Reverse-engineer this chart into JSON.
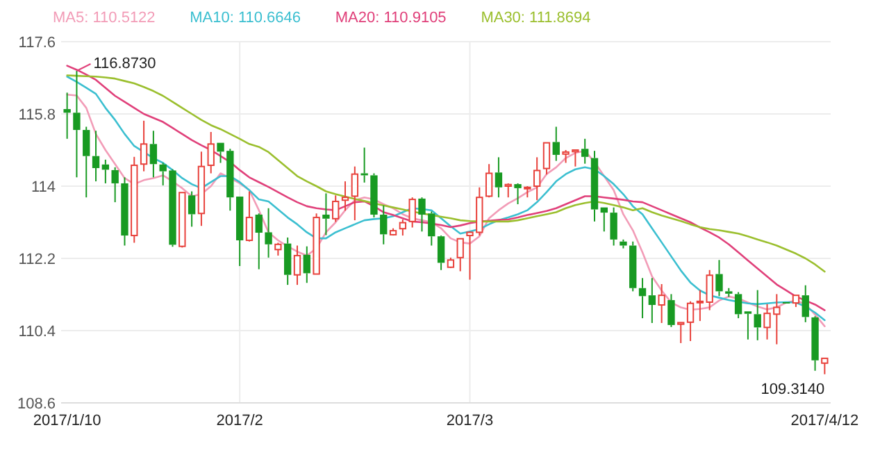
{
  "chart_data": {
    "type": "candlestick",
    "categories": [
      "2017/1/10",
      null,
      null,
      null,
      null,
      null,
      null,
      null,
      null,
      null,
      null,
      null,
      null,
      null,
      null,
      null,
      null,
      null,
      "2017/2",
      null,
      null,
      null,
      null,
      null,
      null,
      null,
      null,
      null,
      null,
      null,
      null,
      null,
      null,
      null,
      null,
      null,
      null,
      null,
      null,
      null,
      null,
      null,
      "2017/3",
      null,
      null,
      null,
      null,
      null,
      null,
      null,
      null,
      null,
      null,
      null,
      null,
      null,
      null,
      null,
      null,
      null,
      null,
      null,
      null,
      null,
      null,
      null,
      null,
      null,
      null,
      null,
      null,
      null,
      null,
      null,
      null,
      null,
      null,
      null,
      null,
      "2017/4/12"
    ],
    "ylim": [
      108.6,
      117.6
    ],
    "yticks": [
      108.6,
      110.4,
      112.2,
      114,
      115.8,
      117.6
    ],
    "grid": true,
    "annotations": [
      "116.8730",
      "109.3140"
    ],
    "series": [
      {
        "ohlc": [
          [
            115.92,
            116.33,
            115.18,
            115.83
          ],
          [
            115.83,
            116.873,
            114.22,
            115.4
          ],
          [
            115.4,
            115.48,
            113.72,
            114.75
          ],
          [
            114.75,
            115.38,
            114.12,
            114.45
          ],
          [
            114.54,
            114.66,
            114.07,
            114.41
          ],
          [
            114.4,
            114.47,
            113.6,
            114.07
          ],
          [
            114.07,
            114.22,
            112.52,
            112.77
          ],
          [
            112.77,
            114.73,
            112.59,
            114.52
          ],
          [
            114.55,
            115.63,
            114.37,
            115.05
          ],
          [
            115.05,
            115.38,
            114.22,
            114.55
          ],
          [
            114.54,
            114.58,
            114.02,
            114.37
          ],
          [
            114.39,
            114.42,
            112.49,
            112.54
          ],
          [
            112.5,
            113.84,
            112.47,
            113.84
          ],
          [
            113.77,
            113.87,
            112.99,
            113.3
          ],
          [
            113.32,
            114.86,
            113.01,
            114.49
          ],
          [
            114.52,
            115.35,
            114.32,
            115.05
          ],
          [
            115.08,
            115.08,
            114.58,
            114.86
          ],
          [
            114.88,
            114.93,
            113.39,
            113.72
          ],
          [
            113.74,
            113.74,
            112.01,
            112.65
          ],
          [
            112.65,
            113.87,
            112.62,
            113.22
          ],
          [
            113.29,
            113.32,
            111.93,
            112.84
          ],
          [
            112.85,
            113.45,
            112.22,
            112.55
          ],
          [
            112.42,
            112.59,
            112.27,
            112.55
          ],
          [
            112.57,
            112.72,
            111.54,
            111.79
          ],
          [
            111.79,
            112.52,
            111.54,
            112.27
          ],
          [
            112.29,
            112.5,
            111.59,
            111.83
          ],
          [
            111.81,
            113.32,
            111.81,
            113.22
          ],
          [
            113.29,
            113.82,
            112.78,
            113.19
          ],
          [
            113.19,
            113.77,
            113.11,
            113.62
          ],
          [
            113.65,
            114.12,
            113.39,
            113.72
          ],
          [
            113.75,
            114.49,
            113.15,
            114.3
          ],
          [
            114.32,
            114.96,
            114.09,
            114.27
          ],
          [
            114.27,
            114.32,
            113.22,
            113.29
          ],
          [
            113.29,
            113.52,
            112.55,
            112.8
          ],
          [
            112.79,
            112.95,
            112.77,
            112.89
          ],
          [
            112.94,
            113.17,
            112.77,
            113.09
          ],
          [
            113.12,
            113.72,
            112.97,
            113.67
          ],
          [
            113.69,
            113.72,
            112.87,
            113.29
          ],
          [
            113.32,
            113.37,
            112.52,
            112.75
          ],
          [
            112.75,
            112.77,
            111.91,
            112.09
          ],
          [
            111.98,
            112.22,
            111.96,
            112.16
          ],
          [
            112.22,
            112.69,
            111.88,
            112.69
          ],
          [
            112.77,
            112.87,
            111.67,
            112.85
          ],
          [
            112.85,
            113.97,
            112.77,
            113.72
          ],
          [
            113.75,
            114.55,
            113.72,
            114.32
          ],
          [
            114.34,
            114.72,
            113.72,
            113.97
          ],
          [
            114.0,
            114.07,
            113.72,
            114.04
          ],
          [
            114.05,
            114.07,
            113.55,
            113.95
          ],
          [
            113.94,
            114.0,
            113.72,
            113.97
          ],
          [
            114.0,
            114.72,
            113.65,
            114.39
          ],
          [
            114.44,
            115.08,
            114.29,
            115.08
          ],
          [
            115.1,
            115.48,
            114.63,
            114.78
          ],
          [
            114.8,
            114.9,
            114.58,
            114.85
          ],
          [
            114.86,
            114.9,
            114.49,
            114.9
          ],
          [
            114.93,
            115.18,
            114.56,
            114.73
          ],
          [
            114.7,
            114.88,
            113.12,
            113.42
          ],
          [
            113.47,
            113.47,
            112.87,
            113.34
          ],
          [
            113.34,
            113.47,
            112.52,
            112.67
          ],
          [
            112.62,
            112.67,
            112.45,
            112.52
          ],
          [
            112.52,
            112.62,
            111.38,
            111.46
          ],
          [
            111.46,
            111.71,
            110.71,
            111.26
          ],
          [
            111.28,
            111.71,
            110.59,
            111.04
          ],
          [
            111.04,
            111.56,
            110.59,
            111.28
          ],
          [
            111.16,
            111.31,
            110.49,
            110.54
          ],
          [
            110.56,
            110.61,
            110.09,
            110.6
          ],
          [
            110.61,
            111.13,
            110.14,
            111.08
          ],
          [
            111.1,
            111.41,
            110.64,
            111.13
          ],
          [
            111.11,
            111.91,
            110.91,
            111.78
          ],
          [
            111.81,
            112.16,
            111.26,
            111.38
          ],
          [
            111.38,
            111.46,
            111.24,
            111.32
          ],
          [
            111.31,
            111.36,
            110.71,
            110.81
          ],
          [
            110.88,
            110.88,
            110.18,
            110.82
          ],
          [
            110.81,
            111.41,
            110.16,
            110.48
          ],
          [
            110.48,
            111.06,
            110.18,
            110.83
          ],
          [
            110.81,
            111.31,
            110.06,
            110.98
          ],
          [
            111.11,
            111.11,
            111.09,
            111.09
          ],
          [
            111.09,
            111.28,
            110.99,
            111.28
          ],
          [
            111.28,
            111.53,
            110.61,
            110.74
          ],
          [
            110.73,
            110.76,
            109.4,
            109.66
          ],
          [
            109.59,
            109.71,
            109.314,
            109.71
          ]
        ]
      },
      {
        "type": "line",
        "name": "MA5: 110.5122",
        "color": "#f29cb7",
        "values": [
          116.28,
          116.26,
          115.95,
          115.3,
          114.9,
          114.55,
          114.2,
          114.05,
          114.15,
          114.2,
          114.27,
          114.12,
          113.95,
          113.75,
          113.8,
          114.0,
          114.32,
          114.2,
          114.07,
          113.9,
          113.4,
          112.85,
          112.65,
          112.5,
          112.37,
          112.27,
          112.45,
          112.85,
          113.1,
          113.4,
          113.65,
          113.72,
          113.67,
          113.55,
          113.45,
          113.3,
          113.2,
          113.15,
          113.1,
          112.95,
          112.7,
          112.6,
          112.57,
          112.75,
          113.2,
          113.4,
          113.57,
          113.7,
          113.85,
          113.97,
          114.3,
          114.47,
          114.7,
          114.83,
          114.88,
          114.6,
          114.25,
          113.9,
          113.3,
          112.9,
          112.35,
          111.75,
          111.4,
          111.1,
          110.98,
          110.92,
          110.94,
          110.98,
          111.15,
          111.25,
          111.2,
          111.1,
          111.0,
          110.93,
          110.98,
          111.1,
          111.15,
          111.06,
          110.8,
          110.51
        ]
      },
      {
        "type": "line",
        "name": "MA10: 110.6646",
        "color": "#3bbfd0",
        "values": [
          116.73,
          116.6,
          116.45,
          116.3,
          115.95,
          115.65,
          115.3,
          115.0,
          114.85,
          114.7,
          114.58,
          114.4,
          114.2,
          114.05,
          113.95,
          114.1,
          114.25,
          114.25,
          114.1,
          113.9,
          113.67,
          113.62,
          113.42,
          113.22,
          113.05,
          112.85,
          112.7,
          112.7,
          112.85,
          112.95,
          113.05,
          113.15,
          113.18,
          113.2,
          113.25,
          113.35,
          113.45,
          113.43,
          113.4,
          113.2,
          113.0,
          112.82,
          112.87,
          112.93,
          113.05,
          113.15,
          113.22,
          113.3,
          113.4,
          113.6,
          113.85,
          114.12,
          114.3,
          114.42,
          114.47,
          114.42,
          114.25,
          114.05,
          113.8,
          113.5,
          113.3,
          112.95,
          112.6,
          112.25,
          111.9,
          111.6,
          111.4,
          111.28,
          111.22,
          111.16,
          111.12,
          111.08,
          111.06,
          111.08,
          111.1,
          111.11,
          111.1,
          111.0,
          110.85,
          110.66
        ]
      },
      {
        "type": "line",
        "name": "MA20: 110.9105",
        "color": "#e0407a",
        "values": [
          117.0,
          116.9,
          116.78,
          116.65,
          116.45,
          116.25,
          116.1,
          115.95,
          115.8,
          115.7,
          115.6,
          115.45,
          115.3,
          115.15,
          115.02,
          114.9,
          114.75,
          114.6,
          114.4,
          114.22,
          114.1,
          113.98,
          113.85,
          113.72,
          113.6,
          113.5,
          113.45,
          113.42,
          113.4,
          113.5,
          113.6,
          113.62,
          113.5,
          113.35,
          113.28,
          113.2,
          113.12,
          113.1,
          113.07,
          113.03,
          112.98,
          113.02,
          113.08,
          113.12,
          113.14,
          113.16,
          113.17,
          113.22,
          113.28,
          113.33,
          113.38,
          113.45,
          113.55,
          113.65,
          113.75,
          113.75,
          113.72,
          113.69,
          113.66,
          113.62,
          113.6,
          113.5,
          113.4,
          113.3,
          113.2,
          113.1,
          112.97,
          112.85,
          112.72,
          112.55,
          112.35,
          112.15,
          111.95,
          111.75,
          111.55,
          111.4,
          111.25,
          111.15,
          111.05,
          110.91
        ]
      },
      {
        "type": "line",
        "name": "MA30: 111.8694",
        "color": "#9bbf2e",
        "values": [
          116.76,
          116.75,
          116.74,
          116.73,
          116.71,
          116.68,
          116.62,
          116.56,
          116.47,
          116.37,
          116.25,
          116.1,
          115.95,
          115.8,
          115.65,
          115.52,
          115.42,
          115.3,
          115.18,
          115.05,
          114.98,
          114.85,
          114.65,
          114.45,
          114.25,
          114.12,
          114.0,
          113.87,
          113.8,
          113.74,
          113.68,
          113.63,
          113.57,
          113.52,
          113.47,
          113.42,
          113.37,
          113.32,
          113.28,
          113.24,
          113.2,
          113.15,
          113.13,
          113.12,
          113.12,
          113.12,
          113.12,
          113.15,
          113.2,
          113.25,
          113.3,
          113.35,
          113.45,
          113.53,
          113.58,
          113.62,
          113.58,
          113.53,
          113.47,
          113.4,
          113.45,
          113.35,
          113.27,
          113.2,
          113.13,
          113.05,
          112.98,
          112.93,
          112.9,
          112.86,
          112.82,
          112.75,
          112.67,
          112.6,
          112.52,
          112.42,
          112.32,
          112.2,
          112.05,
          111.87
        ]
      }
    ]
  }
}
